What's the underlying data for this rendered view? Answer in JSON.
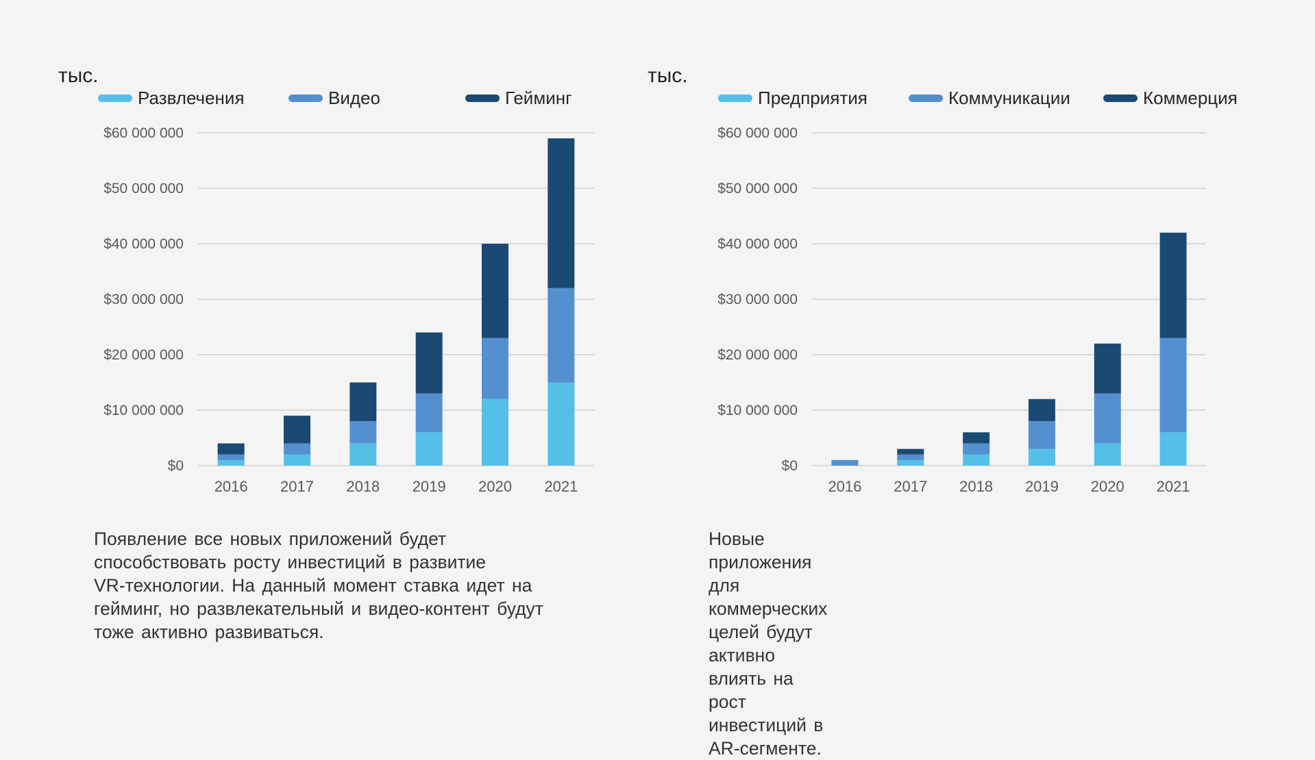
{
  "colors": {
    "light": "#56bfe6",
    "mid": "#5490d0",
    "dark": "#1a4a73",
    "grid": "#d9d9d9",
    "background": "#f4f4f4"
  },
  "chart_data": [
    {
      "type": "bar",
      "stacked": true,
      "title": "",
      "unit_label": "тыс.",
      "xlabel": "",
      "ylabel": "",
      "categories": [
        "2016",
        "2017",
        "2018",
        "2019",
        "2020",
        "2021"
      ],
      "series": [
        {
          "name": "Развлечения",
          "color": "#56bfe6",
          "values": [
            1000000,
            2000000,
            4000000,
            6000000,
            12000000,
            15000000
          ]
        },
        {
          "name": "Видео",
          "color": "#5490d0",
          "values": [
            1000000,
            2000000,
            4000000,
            7000000,
            11000000,
            17000000
          ]
        },
        {
          "name": "Гейминг",
          "color": "#1a4a73",
          "values": [
            2000000,
            5000000,
            7000000,
            11000000,
            17000000,
            27000000
          ]
        }
      ],
      "ylim": [
        0,
        60000000
      ],
      "yticks": [
        0,
        10000000,
        20000000,
        30000000,
        40000000,
        50000000,
        60000000
      ],
      "ytick_labels": [
        "$0",
        "$10 000 000",
        "$20 000 000",
        "$30 000 000",
        "$40 000 000",
        "$50 000 000",
        "$60 000 000"
      ],
      "grid": true,
      "legend_position": "top"
    },
    {
      "type": "bar",
      "stacked": true,
      "title": "",
      "unit_label": "тыс.",
      "xlabel": "",
      "ylabel": "",
      "categories": [
        "2016",
        "2017",
        "2018",
        "2019",
        "2020",
        "2021"
      ],
      "series": [
        {
          "name": "Предприятия",
          "color": "#56bfe6",
          "values": [
            0,
            1000000,
            2000000,
            3000000,
            4000000,
            6000000
          ]
        },
        {
          "name": "Коммуникации",
          "color": "#5490d0",
          "values": [
            1000000,
            1000000,
            2000000,
            5000000,
            9000000,
            17000000
          ]
        },
        {
          "name": "Коммерция",
          "color": "#1a4a73",
          "values": [
            0,
            1000000,
            2000000,
            4000000,
            9000000,
            19000000
          ]
        }
      ],
      "ylim": [
        0,
        60000000
      ],
      "yticks": [
        0,
        10000000,
        20000000,
        30000000,
        40000000,
        50000000,
        60000000
      ],
      "ytick_labels": [
        "$0",
        "$10 000 000",
        "$20 000 000",
        "$30 000 000",
        "$40 000 000",
        "$50 000 000",
        "$60 000 000"
      ],
      "grid": true,
      "legend_position": "top"
    }
  ],
  "descriptions": [
    {
      "lines": [
        "Появление все новых приложений будет",
        "способствовать росту инвестиций в развитие",
        "VR-технологии. На данный момент ставка идет на",
        "гейминг, но развлекательный и видео-контент будут",
        "тоже активно развиваться."
      ]
    },
    {
      "lines": [
        "Новые приложения для коммерческих целей будут",
        "активно влиять на рост инвестиций в AR-сегменте."
      ]
    }
  ]
}
